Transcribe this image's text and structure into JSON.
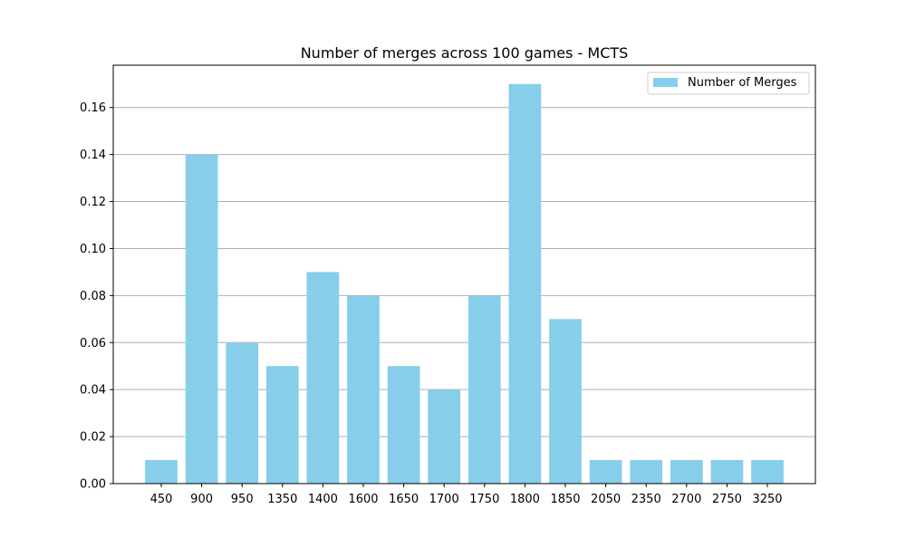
{
  "chart_data": {
    "type": "bar",
    "title": "Number of merges across 100 games - MCTS",
    "xlabel": "",
    "ylabel": "",
    "categories": [
      "450",
      "900",
      "950",
      "1350",
      "1400",
      "1600",
      "1650",
      "1700",
      "1750",
      "1800",
      "1850",
      "2050",
      "2350",
      "2700",
      "2750",
      "3250"
    ],
    "series": [
      {
        "name": "Number of Merges",
        "values": [
          0.01,
          0.14,
          0.06,
          0.05,
          0.09,
          0.08,
          0.05,
          0.04,
          0.08,
          0.17,
          0.07,
          0.01,
          0.01,
          0.01,
          0.01,
          0.01
        ],
        "color": "#87ceeb"
      }
    ],
    "ylim": [
      0,
      0.178
    ],
    "yticks": [
      "0.00",
      "0.02",
      "0.04",
      "0.06",
      "0.08",
      "0.10",
      "0.12",
      "0.14",
      "0.16"
    ],
    "grid": "y",
    "legend": "top-right",
    "grid_color": "#b0b0b0"
  }
}
